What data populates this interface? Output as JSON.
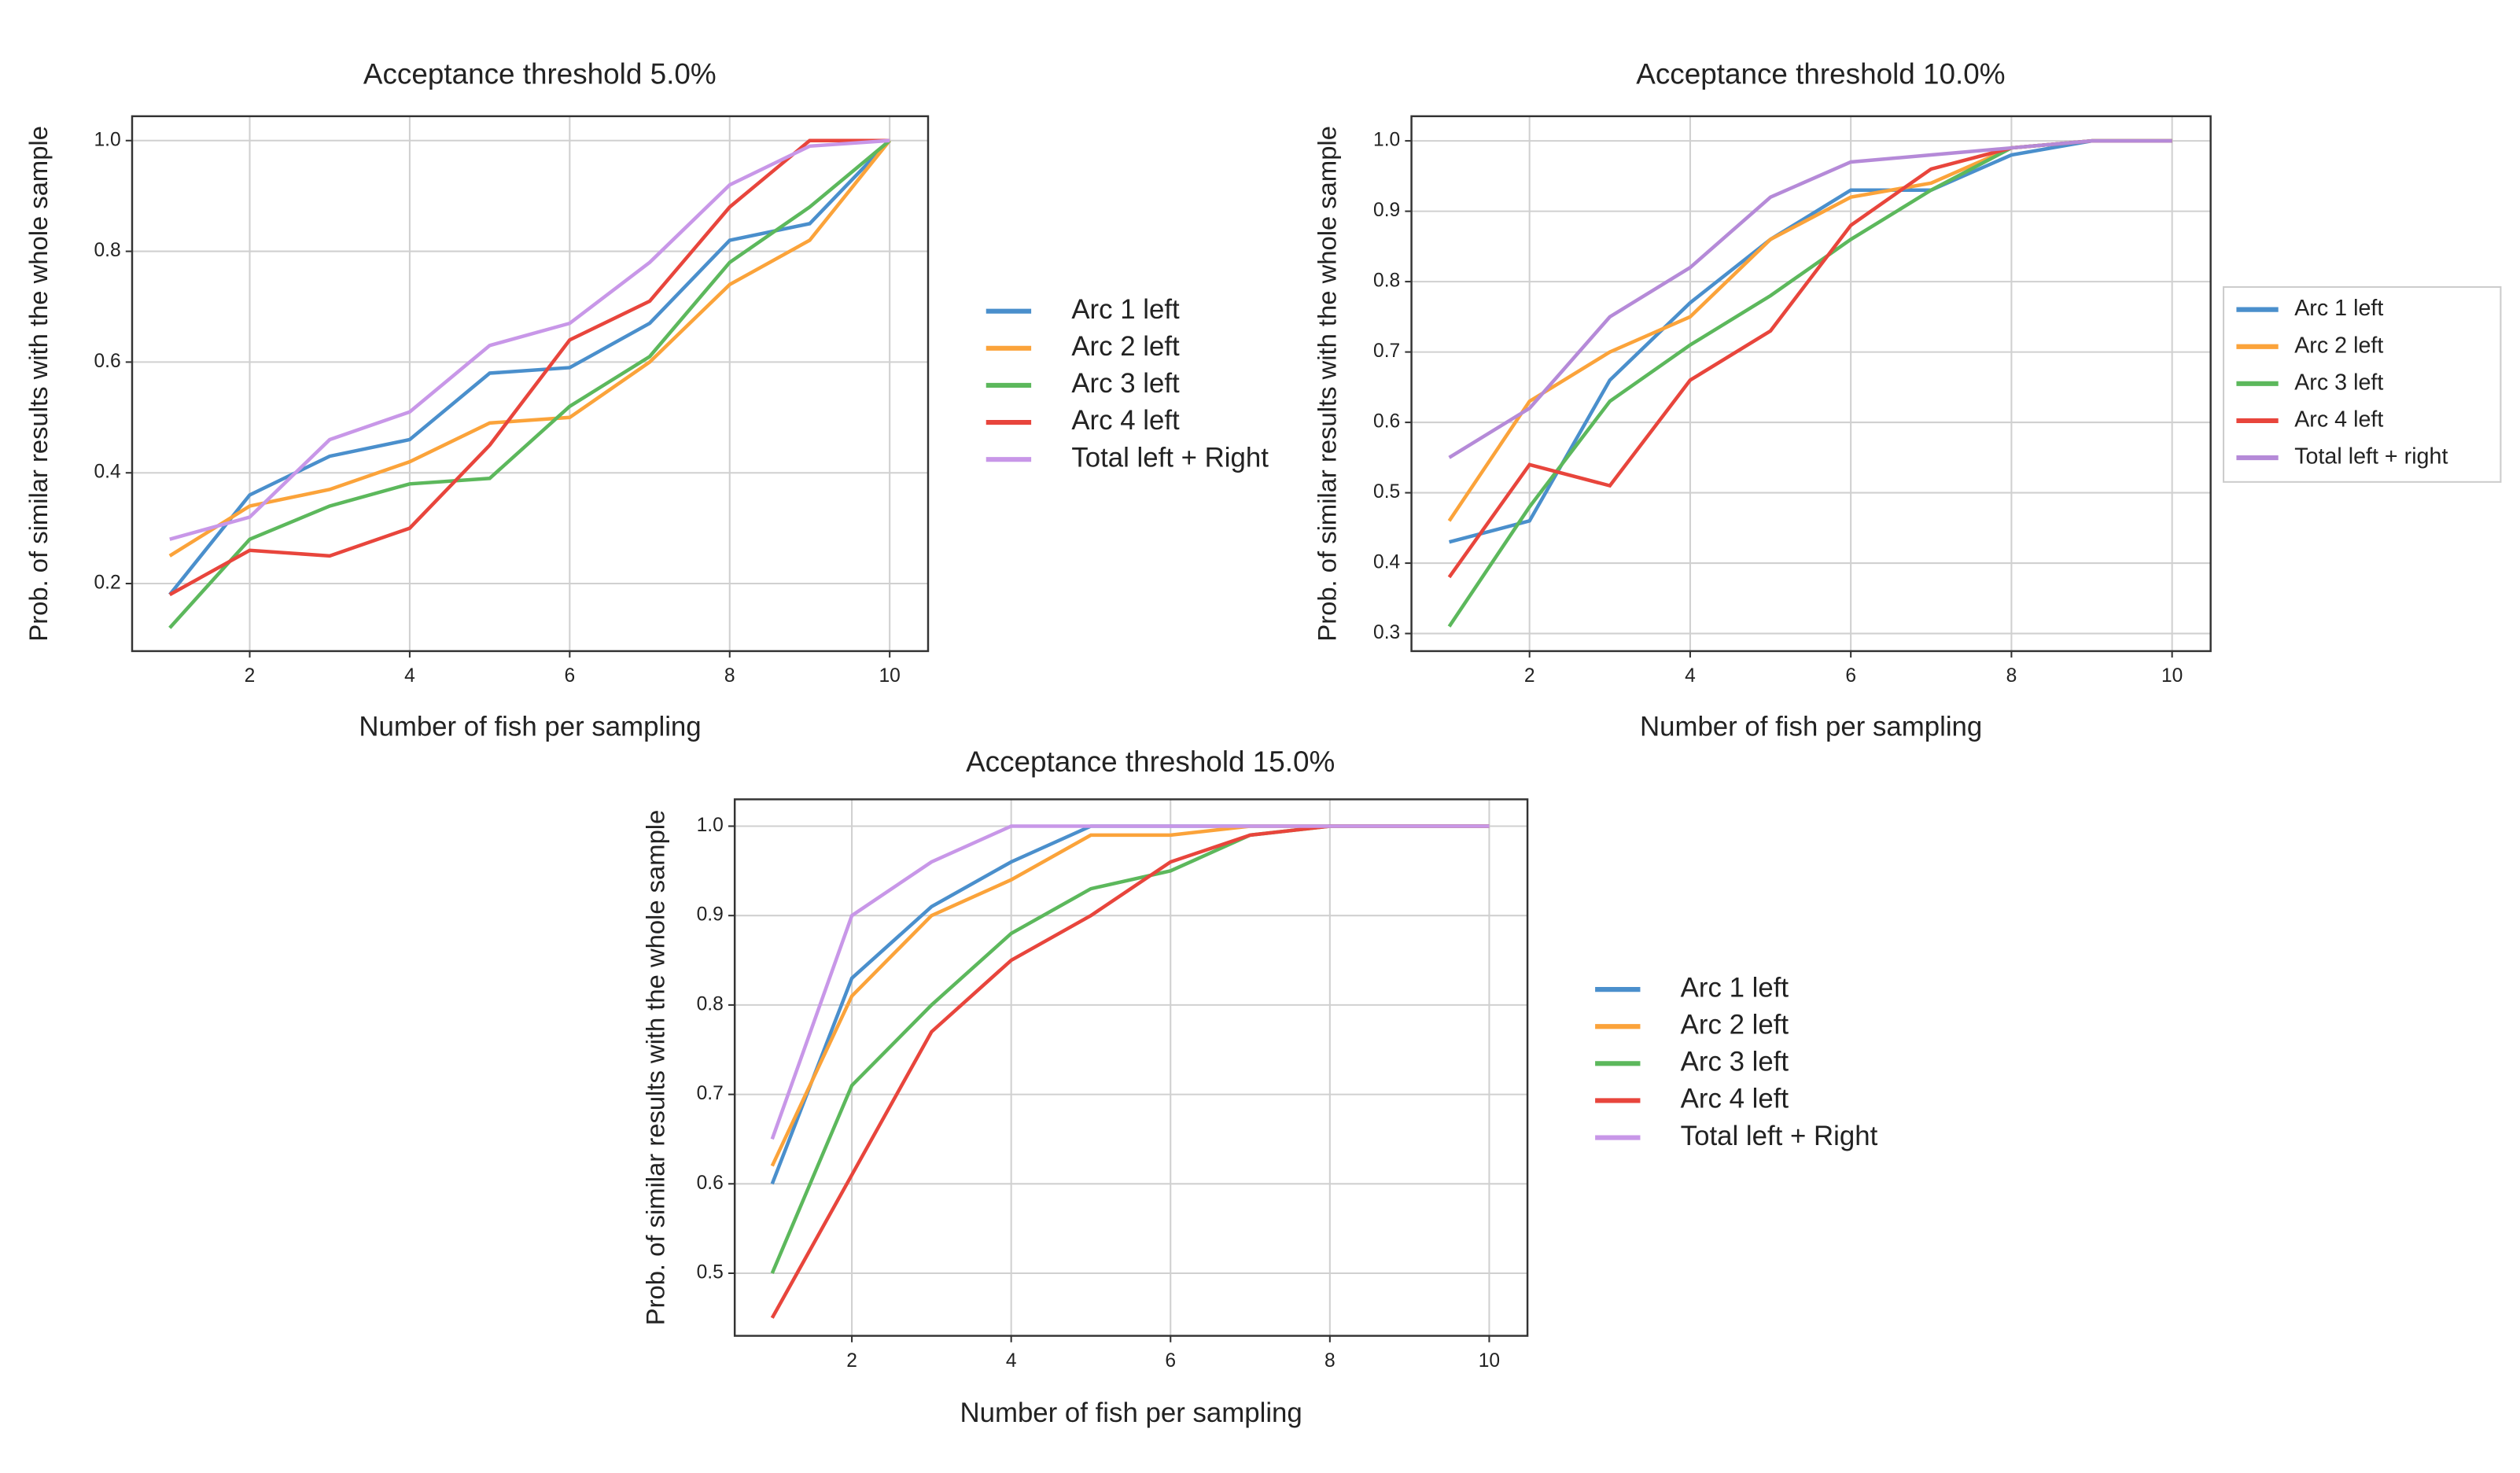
{
  "chart_data": [
    {
      "type": "line",
      "title": "Acceptance threshold 5.0%",
      "xlabel": "Number of fish per sampling",
      "ylabel": "Prob.  of  similar results with the whole sample",
      "x": [
        1,
        2,
        3,
        4,
        5,
        6,
        7,
        8,
        9,
        10
      ],
      "xlim": [
        0.53,
        10.48
      ],
      "xticks": [
        2,
        4,
        6,
        8,
        10
      ],
      "ylim": [
        0.078,
        1.044
      ],
      "yticks": [
        0.2,
        0.4,
        0.6,
        0.8,
        {
          "value": 1,
          "label": "1.0"
        }
      ],
      "grid": true,
      "legend": "outside right",
      "series": [
        {
          "name": "Arc 1 left",
          "color": "#4a8fcc",
          "values": [
            0.18,
            0.36,
            0.43,
            0.46,
            0.58,
            0.59,
            0.67,
            0.82,
            0.85,
            1.0
          ]
        },
        {
          "name": "Arc 2 left",
          "color": "#fba33a",
          "values": [
            0.25,
            0.34,
            0.37,
            0.42,
            0.49,
            0.5,
            0.6,
            0.74,
            0.82,
            1.0
          ]
        },
        {
          "name": "Arc 3 left",
          "color": "#5cb85c",
          "values": [
            0.12,
            0.28,
            0.34,
            0.38,
            0.39,
            0.52,
            0.61,
            0.78,
            0.88,
            1.0
          ]
        },
        {
          "name": "Arc 4 left",
          "color": "#e8453c",
          "values": [
            0.18,
            0.26,
            0.25,
            0.3,
            0.45,
            0.64,
            0.71,
            0.88,
            1.0,
            1.0
          ]
        },
        {
          "name": "Total left + Right",
          "color": "#c897e8",
          "values": [
            0.28,
            0.32,
            0.46,
            0.51,
            0.63,
            0.67,
            0.78,
            0.92,
            0.99,
            1.0
          ]
        }
      ]
    },
    {
      "type": "line",
      "title": "Acceptance threshold 10.0%",
      "xlabel": "Number of fish per sampling",
      "ylabel": "Prob.  of  similar results with the whole sample",
      "x": [
        1,
        2,
        3,
        4,
        5,
        6,
        7,
        8,
        9,
        10
      ],
      "xlim": [
        0.53,
        10.48
      ],
      "xticks": [
        2,
        4,
        6,
        8,
        10
      ],
      "ylim": [
        0.275,
        1.035
      ],
      "yticks": [
        0.3,
        0.4,
        0.5,
        0.6,
        0.7,
        0.8,
        0.9,
        {
          "value": 1,
          "label": "1.0"
        }
      ],
      "grid": true,
      "legend": "outside right boxed",
      "series": [
        {
          "name": "Arc 1 left",
          "color": "#4a8fcc",
          "values": [
            0.43,
            0.46,
            0.66,
            0.77,
            0.86,
            0.93,
            0.93,
            0.98,
            1.0,
            1.0
          ]
        },
        {
          "name": "Arc 2 left",
          "color": "#fba33a",
          "values": [
            0.46,
            0.63,
            0.7,
            0.75,
            0.86,
            0.92,
            0.94,
            0.99,
            1.0,
            1.0
          ]
        },
        {
          "name": "Arc 3 left",
          "color": "#5cb85c",
          "values": [
            0.31,
            0.48,
            0.63,
            0.71,
            0.78,
            0.86,
            0.93,
            0.99,
            1.0,
            1.0
          ]
        },
        {
          "name": "Arc 4 left",
          "color": "#e8453c",
          "values": [
            0.38,
            0.54,
            0.51,
            0.66,
            0.73,
            0.88,
            0.96,
            0.99,
            1.0,
            1.0
          ]
        },
        {
          "name": "Total left + right",
          "color": "#b58ad8",
          "values": [
            0.55,
            0.62,
            0.75,
            0.82,
            0.92,
            0.97,
            0.98,
            0.99,
            1.0,
            1.0
          ]
        }
      ]
    },
    {
      "type": "line",
      "title": "Acceptance threshold 15.0%",
      "xlabel": "Number of fish per sampling",
      "ylabel": "Prob.  of  similar results with the whole sample",
      "x": [
        1,
        2,
        3,
        4,
        5,
        6,
        7,
        8,
        9,
        10
      ],
      "xlim": [
        0.53,
        10.48
      ],
      "xticks": [
        2,
        4,
        6,
        8,
        10
      ],
      "ylim": [
        0.43,
        1.03
      ],
      "yticks": [
        0.5,
        0.6,
        0.7,
        0.8,
        0.9,
        {
          "value": 1,
          "label": "1.0"
        }
      ],
      "grid": true,
      "legend": "outside right",
      "series": [
        {
          "name": "Arc 1 left",
          "color": "#4a8fcc",
          "values": [
            0.6,
            0.83,
            0.91,
            0.96,
            1.0,
            1.0,
            1.0,
            1.0,
            1.0,
            1.0
          ]
        },
        {
          "name": "Arc 2 left",
          "color": "#fba33a",
          "values": [
            0.62,
            0.81,
            0.9,
            0.94,
            0.99,
            0.99,
            1.0,
            1.0,
            1.0,
            1.0
          ]
        },
        {
          "name": "Arc 3 left",
          "color": "#5cb85c",
          "values": [
            0.5,
            0.71,
            0.8,
            0.88,
            0.93,
            0.95,
            0.99,
            1.0,
            1.0,
            1.0
          ]
        },
        {
          "name": "Arc 4 left",
          "color": "#e8453c",
          "values": [
            0.45,
            0.61,
            0.77,
            0.85,
            0.9,
            0.96,
            0.99,
            1.0,
            1.0,
            1.0
          ]
        },
        {
          "name": "Total left + Right",
          "color": "#c897e8",
          "values": [
            0.65,
            0.9,
            0.96,
            1.0,
            1.0,
            1.0,
            1.0,
            1.0,
            1.0,
            1.0
          ]
        }
      ]
    }
  ]
}
